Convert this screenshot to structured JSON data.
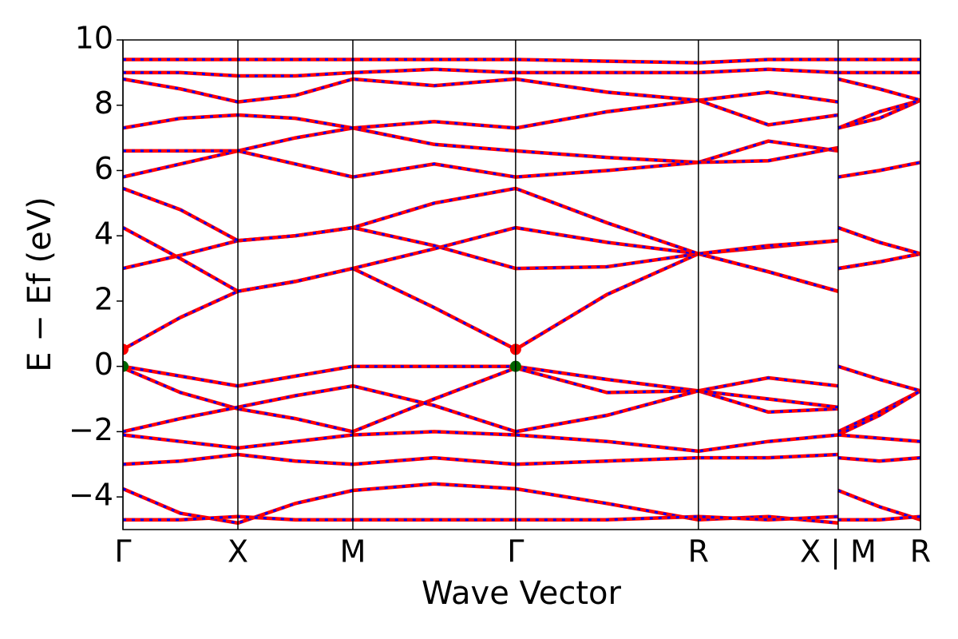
{
  "chart_data": {
    "type": "line",
    "x_label": "Wave Vector",
    "y_label": "E − Ef (eV)",
    "xlim": [
      0,
      3.469
    ],
    "ylim": [
      -5,
      10
    ],
    "xticks": [
      {
        "value": 0,
        "label": "Γ"
      },
      {
        "value": 0.5,
        "label": "X"
      },
      {
        "value": 1.0,
        "label": "M"
      },
      {
        "value": 1.708,
        "label": "Γ"
      },
      {
        "value": 2.503,
        "label": "R"
      },
      {
        "value": 3.111,
        "label": "X | M"
      },
      {
        "value": 3.469,
        "label": "R"
      }
    ],
    "yticks": [
      {
        "value": -4,
        "label": "−4"
      },
      {
        "value": -2,
        "label": "−2"
      },
      0,
      2,
      4,
      6,
      8,
      10
    ],
    "overlay_color": "#0000ff",
    "x": [
      0,
      0.25,
      0.5,
      0.75,
      1.0,
      1.354,
      1.708,
      2.105,
      2.503,
      2.807,
      3.111,
      3.111,
      3.111,
      3.29,
      3.469
    ],
    "series": [
      {
        "color": "#ff0000",
        "values": [
          0.52,
          1.5,
          2.3,
          2.6,
          3.0,
          1.8,
          0.52,
          2.2,
          3.45,
          2.9,
          2.3,
          null,
          3.0,
          3.2,
          3.45
        ]
      },
      {
        "color": "#ff0000",
        "values": [
          3.0,
          3.4,
          3.85,
          4.0,
          4.25,
          3.7,
          3.0,
          3.05,
          3.45,
          3.65,
          3.85,
          null,
          4.25,
          3.8,
          3.45
        ]
      },
      {
        "color": "#ff0000",
        "values": [
          4.25,
          3.3,
          2.3,
          2.6,
          3.0,
          3.6,
          4.25,
          3.8,
          3.45,
          2.9,
          2.3,
          null,
          3.0,
          3.2,
          3.45
        ]
      },
      {
        "color": "#ff0000",
        "values": [
          5.45,
          4.8,
          3.85,
          4.0,
          4.25,
          5.0,
          5.45,
          4.4,
          3.45,
          3.7,
          3.85,
          null,
          4.25,
          3.8,
          3.45
        ]
      },
      {
        "color": "#ff0000",
        "values": [
          0,
          -0.3,
          -0.6,
          -0.3,
          0,
          0,
          0,
          -0.4,
          -0.75,
          -0.35,
          -0.6,
          null,
          0,
          -0.4,
          -0.75
        ]
      },
      {
        "color": "#ff0000",
        "values": [
          -0.05,
          -0.8,
          -1.3,
          -1.6,
          -2.0,
          -1.0,
          -0.05,
          -0.8,
          -0.75,
          -1.4,
          -1.3,
          null,
          -2.0,
          -1.4,
          -0.75
        ]
      },
      {
        "color": "#ff0000",
        "values": [
          -2.0,
          -1.6,
          -1.25,
          -0.9,
          -0.6,
          -1.2,
          -2.0,
          -1.5,
          -0.75,
          -1.0,
          -1.25,
          null,
          -2.1,
          -1.5,
          -0.75
        ]
      },
      {
        "color": "#ff0000",
        "values": [
          -2.1,
          -2.3,
          -2.5,
          -2.3,
          -2.1,
          -2.0,
          -2.1,
          -2.3,
          -2.6,
          -2.3,
          -2.1,
          null,
          -2.1,
          -2.2,
          -2.3
        ]
      },
      {
        "color": "#ff0000",
        "values": [
          -3.0,
          -2.9,
          -2.7,
          -2.9,
          -3.0,
          -2.8,
          -3.0,
          -2.9,
          -2.8,
          -2.8,
          -2.7,
          null,
          -2.8,
          -2.9,
          -2.8
        ]
      },
      {
        "color": "#ff0000",
        "values": [
          -3.75,
          -4.5,
          -4.8,
          -4.2,
          -3.8,
          -3.6,
          -3.75,
          -4.2,
          -4.7,
          -4.6,
          -4.8,
          null,
          -3.8,
          -4.3,
          -4.7
        ]
      },
      {
        "color": "#ff0000",
        "values": [
          -4.7,
          -4.7,
          -4.6,
          -4.7,
          -4.7,
          -4.7,
          -4.7,
          -4.7,
          -4.6,
          -4.7,
          -4.6,
          null,
          -4.7,
          -4.7,
          -4.6
        ]
      },
      {
        "color": "#ff0000",
        "values": [
          5.8,
          6.2,
          6.6,
          6.2,
          5.8,
          6.2,
          5.8,
          6.0,
          6.25,
          6.9,
          6.6,
          null,
          5.8,
          6.0,
          6.25
        ]
      },
      {
        "color": "#ff0000",
        "values": [
          6.6,
          6.6,
          6.6,
          7.0,
          7.3,
          6.8,
          6.6,
          6.4,
          6.25,
          6.3,
          6.7,
          null,
          7.3,
          7.6,
          8.15
        ]
      },
      {
        "color": "#ff0000",
        "values": [
          7.3,
          7.6,
          7.7,
          7.6,
          7.3,
          7.5,
          7.3,
          7.8,
          8.15,
          7.4,
          7.7,
          null,
          7.3,
          7.8,
          8.15
        ]
      },
      {
        "color": "#ff0000",
        "values": [
          8.8,
          8.5,
          8.1,
          8.3,
          8.8,
          8.6,
          8.8,
          8.4,
          8.15,
          8.4,
          8.1,
          null,
          8.8,
          8.5,
          8.15
        ]
      },
      {
        "color": "#ff0000",
        "values": [
          9.0,
          9.0,
          8.9,
          8.9,
          9.0,
          9.1,
          9.0,
          9.0,
          9.0,
          9.1,
          9.0,
          null,
          9.0,
          9.0,
          9.0
        ]
      },
      {
        "color": "#ff0000",
        "values": [
          9.4,
          9.4,
          9.4,
          9.4,
          9.4,
          9.4,
          9.4,
          9.35,
          9.3,
          9.4,
          9.4,
          null,
          9.4,
          9.4,
          9.4
        ]
      }
    ],
    "points": [
      {
        "x": 0,
        "y": 0.52,
        "color": "#ff0000"
      },
      {
        "x": 0,
        "y": 0,
        "color": "#006400"
      },
      {
        "x": 1.708,
        "y": 0.52,
        "color": "#ff0000"
      },
      {
        "x": 1.708,
        "y": 0,
        "color": "#006400"
      }
    ]
  }
}
